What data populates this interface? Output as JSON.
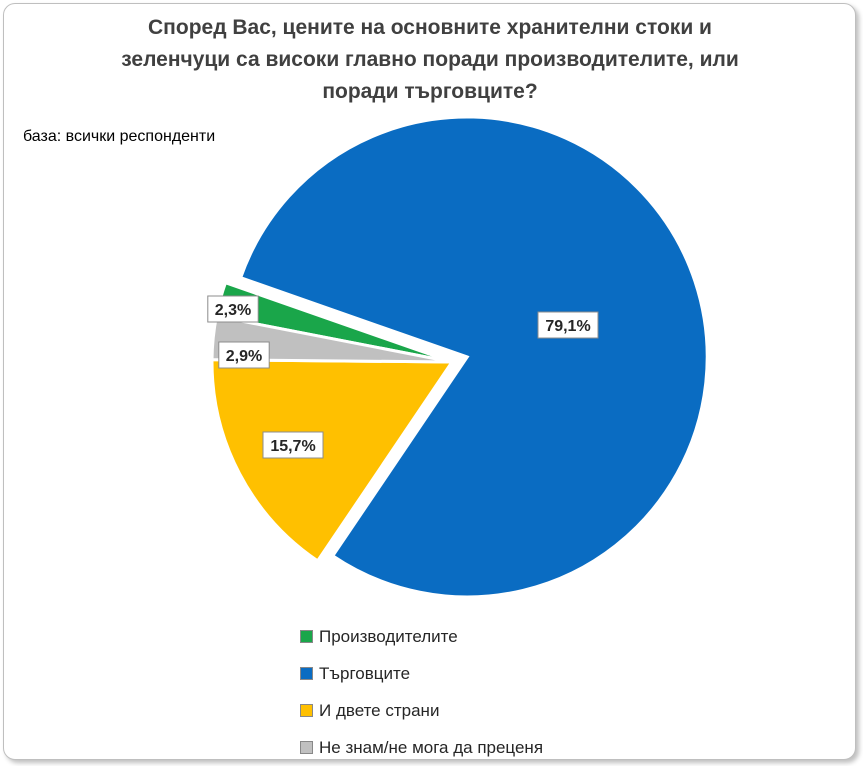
{
  "chart_data": {
    "type": "pie",
    "title": "Според Вас, цените на основните хранителни стоки и\nзеленчуци са високи главно поради производителите, или\nпоради търговците?",
    "subtitle": "база: всички респонденти",
    "slices": [
      {
        "name": "Производителите",
        "value": 2.3,
        "label": "2,3%",
        "color": "#1aa64a",
        "exploded": false
      },
      {
        "name": "Търговците",
        "value": 79.1,
        "label": "79,1%",
        "color": "#0a6cc2",
        "exploded": true
      },
      {
        "name": "И двете страни",
        "value": 15.7,
        "label": "15,7%",
        "color": "#ffc000",
        "exploded": false
      },
      {
        "name": "Не знам/не мога да преценя",
        "value": 2.9,
        "label": "2,9%",
        "color": "#c0c0c0",
        "exploded": false
      }
    ],
    "legend_position": "bottom"
  }
}
